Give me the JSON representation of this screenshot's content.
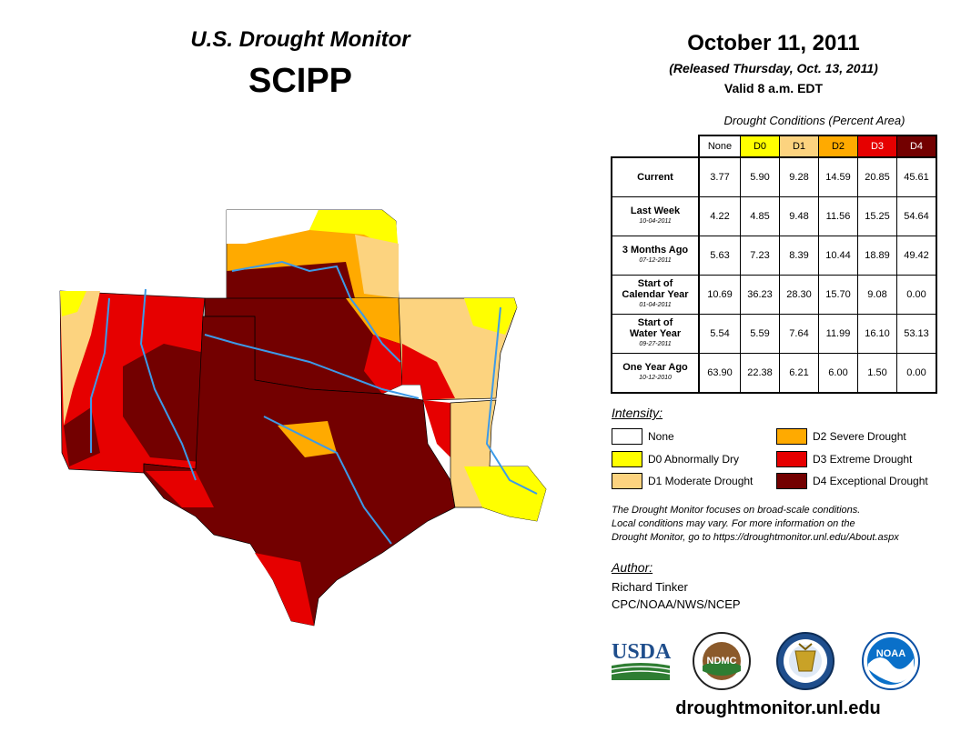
{
  "header": {
    "title": "U.S. Drought Monitor",
    "region": "SCIPP",
    "date": "October 11, 2011",
    "released": "(Released Thursday, Oct. 13, 2011)",
    "valid": "Valid 8 a.m. EDT"
  },
  "table": {
    "caption": "Drought Conditions (Percent Area)",
    "columns": [
      "None",
      "D0",
      "D1",
      "D2",
      "D3",
      "D4"
    ],
    "column_colors": [
      "#ffffff",
      "#ffff00",
      "#fcd37f",
      "#ffaa00",
      "#e60000",
      "#730000"
    ],
    "rows": [
      {
        "label": "Current",
        "sub": "",
        "values": [
          "3.77",
          "5.90",
          "9.28",
          "14.59",
          "20.85",
          "45.61"
        ]
      },
      {
        "label": "Last Week",
        "sub": "10-04-2011",
        "values": [
          "4.22",
          "4.85",
          "9.48",
          "11.56",
          "15.25",
          "54.64"
        ]
      },
      {
        "label": "3 Months Ago",
        "sub": "07-12-2011",
        "values": [
          "5.63",
          "7.23",
          "8.39",
          "10.44",
          "18.89",
          "49.42"
        ]
      },
      {
        "label1": "Start of",
        "label2": "Calendar Year",
        "sub": "01-04-2011",
        "values": [
          "10.69",
          "36.23",
          "28.30",
          "15.70",
          "9.08",
          "0.00"
        ]
      },
      {
        "label1": "Start of",
        "label2": "Water Year",
        "sub": "09-27-2011",
        "values": [
          "5.54",
          "5.59",
          "7.64",
          "11.99",
          "16.10",
          "53.13"
        ]
      },
      {
        "label": "One Year Ago",
        "sub": "10-12-2010",
        "values": [
          "63.90",
          "22.38",
          "6.21",
          "6.00",
          "1.50",
          "0.00"
        ]
      }
    ]
  },
  "legend": {
    "title": "Intensity:",
    "items": [
      {
        "label": "None",
        "color": "#ffffff"
      },
      {
        "label": "D0 Abnormally Dry",
        "color": "#ffff00"
      },
      {
        "label": "D1 Moderate Drought",
        "color": "#fcd37f"
      },
      {
        "label": "D2 Severe Drought",
        "color": "#ffaa00"
      },
      {
        "label": "D3 Extreme Drought",
        "color": "#e60000"
      },
      {
        "label": "D4 Exceptional Drought",
        "color": "#730000"
      }
    ]
  },
  "note": {
    "line1": "The Drought Monitor focuses on broad-scale conditions.",
    "line2": "Local conditions may vary. For more information on the",
    "line3": "Drought Monitor, go to https://droughtmonitor.unl.edu/About.aspx"
  },
  "author": {
    "label": "Author:",
    "name": "Richard Tinker",
    "org": "CPC/NOAA/NWS/NCEP"
  },
  "logos": {
    "usda": "USDA",
    "ndmc": "NDMC",
    "noaa": "NOAA"
  },
  "site": "droughtmonitor.unl.edu",
  "map": {
    "states": [
      "Kansas",
      "Oklahoma",
      "Texas",
      "New Mexico",
      "Arkansas",
      "Louisiana"
    ],
    "icons": [
      "map-icon"
    ]
  }
}
